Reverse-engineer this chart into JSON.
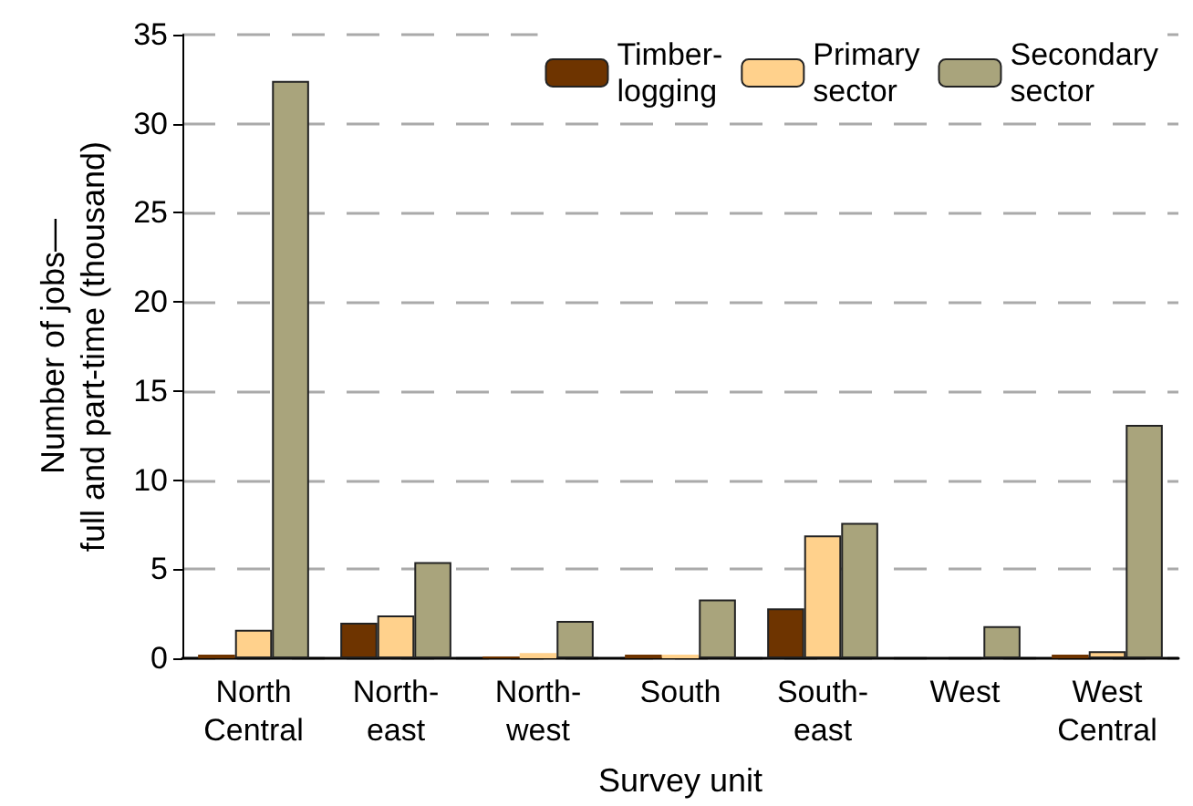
{
  "chart_data": {
    "type": "bar",
    "xlabel": "Survey unit",
    "ylabel": "Number of jobs—\nfull and part-time (thousand)",
    "categories": [
      "North\nCentral",
      "North-\neast",
      "North-\nwest",
      "South",
      "South-\neast",
      "West",
      "West\nCentral"
    ],
    "series": [
      {
        "name": "Timber-\nlogging",
        "color": "#6e3400",
        "values": [
          0.2,
          2.0,
          0.1,
          0.2,
          2.8,
          null,
          0.2
        ]
      },
      {
        "name": "Primary\nsector",
        "color": "#ffd18c",
        "values": [
          1.6,
          2.4,
          0.3,
          0.2,
          6.9,
          null,
          0.4
        ]
      },
      {
        "name": "Secondary\nsector",
        "color": "#a9a47c",
        "values": [
          32.4,
          5.4,
          2.1,
          3.3,
          7.6,
          1.8,
          13.1
        ]
      }
    ],
    "ylim": [
      0,
      35
    ],
    "yticks": [
      0,
      5,
      10,
      15,
      20,
      25,
      30,
      35
    ],
    "grid": "y",
    "legend": "top right"
  }
}
